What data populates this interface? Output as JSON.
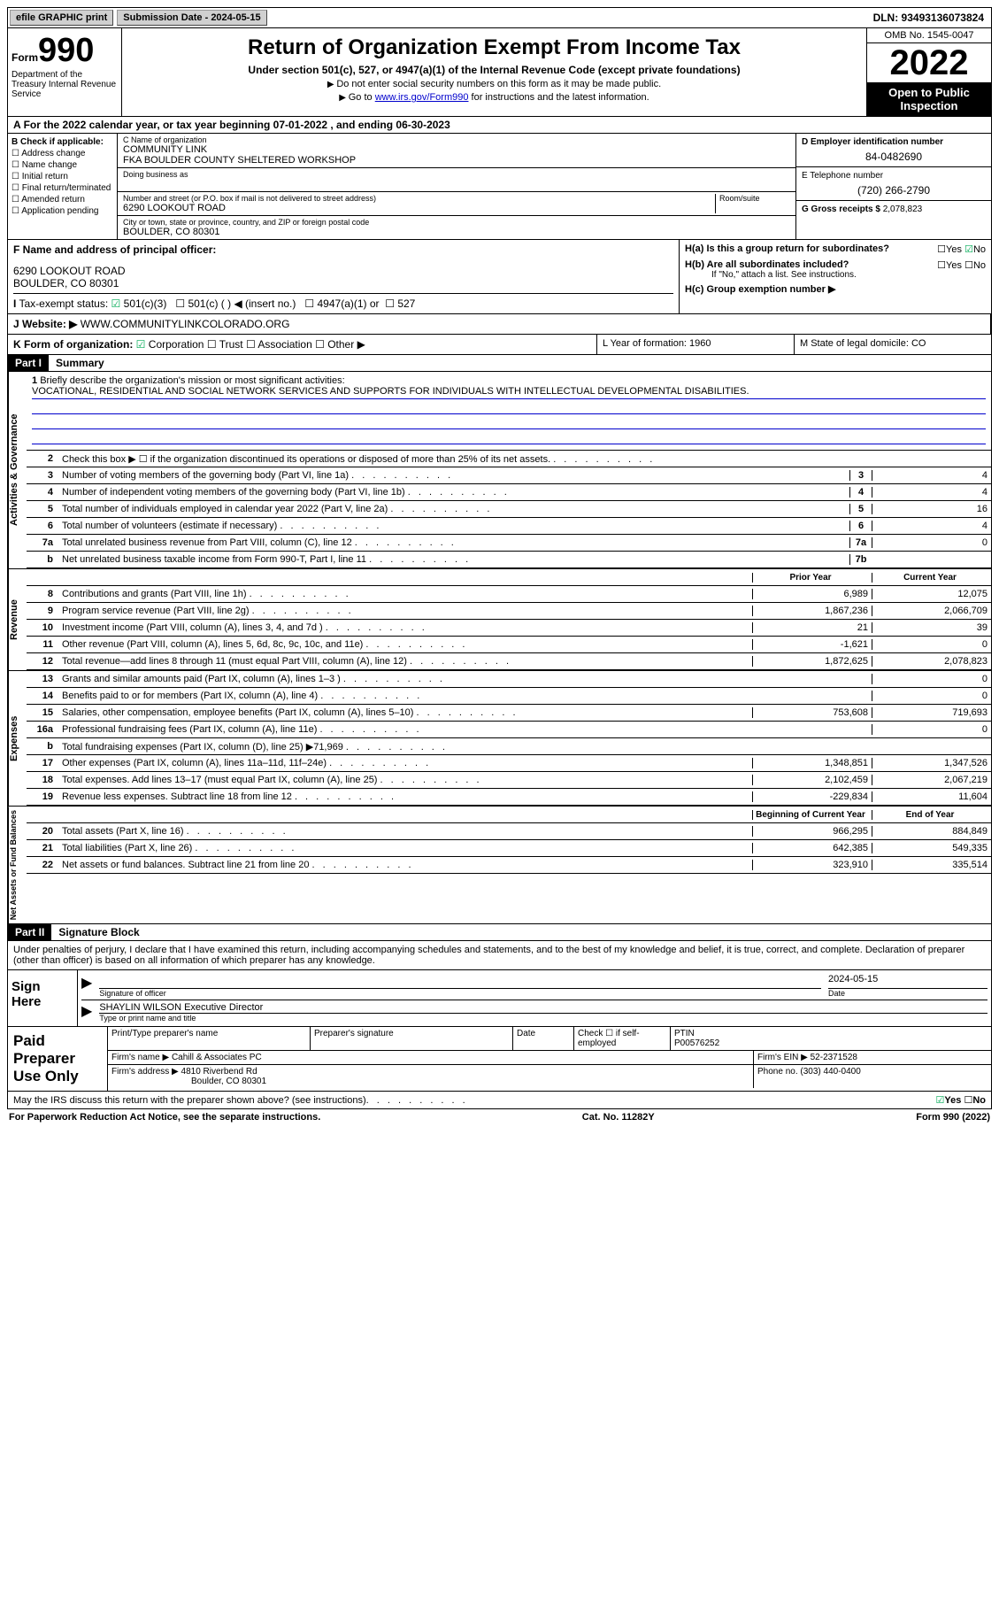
{
  "topbar": {
    "efile": "efile GRAPHIC print",
    "sub_label": "Submission Date - 2024-05-15",
    "dln": "DLN: 93493136073824"
  },
  "header": {
    "form_small": "Form",
    "form_big": "990",
    "dept": "Department of the Treasury Internal Revenue Service",
    "title": "Return of Organization Exempt From Income Tax",
    "sub": "Under section 501(c), 527, or 4947(a)(1) of the Internal Revenue Code (except private foundations)",
    "note1": "Do not enter social security numbers on this form as it may be made public.",
    "note2_pre": "Go to ",
    "note2_link": "www.irs.gov/Form990",
    "note2_post": " for instructions and the latest information.",
    "omb": "OMB No. 1545-0047",
    "year": "2022",
    "open": "Open to Public Inspection"
  },
  "row_a": "For the 2022 calendar year, or tax year beginning 07-01-2022   , and ending 06-30-2023",
  "col_b": {
    "title": "B Check if applicable:",
    "items": [
      "Address change",
      "Name change",
      "Initial return",
      "Final return/terminated",
      "Amended return",
      "Application pending"
    ]
  },
  "col_c": {
    "name_lbl": "C Name of organization",
    "name1": "COMMUNITY LINK",
    "name2": "FKA BOULDER COUNTY SHELTERED WORKSHOP",
    "dba_lbl": "Doing business as",
    "addr_lbl": "Number and street (or P.O. box if mail is not delivered to street address)",
    "room_lbl": "Room/suite",
    "addr": "6290 LOOKOUT ROAD",
    "city_lbl": "City or town, state or province, country, and ZIP or foreign postal code",
    "city": "BOULDER, CO  80301"
  },
  "col_d": {
    "ein_lbl": "D Employer identification number",
    "ein": "84-0482690",
    "tel_lbl": "E Telephone number",
    "tel": "(720) 266-2790",
    "gross_lbl": "G Gross receipts $",
    "gross": "2,078,823"
  },
  "sec_f": {
    "f_lbl": "F Name and address of principal officer:",
    "f_addr1": "6290 LOOKOUT ROAD",
    "f_addr2": "BOULDER, CO  80301",
    "i_lbl": "Tax-exempt status:",
    "i_501c3": "501(c)(3)",
    "i_501c": "501(c) (  ) ◀ (insert no.)",
    "i_4947": "4947(a)(1) or",
    "i_527": "527",
    "j_lbl": "Website: ▶",
    "j_val": "WWW.COMMUNITYLINKCOLORADO.ORG",
    "ha_lbl": "H(a)  Is this a group return for subordinates?",
    "hb_lbl": "H(b)  Are all subordinates included?",
    "hb_note": "If \"No,\" attach a list. See instructions.",
    "hc_lbl": "H(c)  Group exemption number ▶",
    "yes": "Yes",
    "no": "No"
  },
  "row_k": {
    "k_lbl": "K Form of organization:",
    "k_corp": "Corporation",
    "k_trust": "Trust",
    "k_assoc": "Association",
    "k_other": "Other ▶",
    "l": "L Year of formation: 1960",
    "m": "M State of legal domicile: CO"
  },
  "part1": {
    "hdr": "Part I",
    "title": "Summary"
  },
  "mission": {
    "lbl": "Briefly describe the organization's mission or most significant activities:",
    "txt": "VOCATIONAL, RESIDENTIAL AND SOCIAL NETWORK SERVICES AND SUPPORTS FOR INDIVIDUALS WITH INTELLECTUAL DEVELOPMENTAL DISABILITIES."
  },
  "lines_ag": [
    {
      "n": "2",
      "t": "Check this box ▶ ☐ if the organization discontinued its operations or disposed of more than 25% of its net assets."
    },
    {
      "n": "3",
      "t": "Number of voting members of the governing body (Part VI, line 1a)",
      "b": "3",
      "v": "4"
    },
    {
      "n": "4",
      "t": "Number of independent voting members of the governing body (Part VI, line 1b)",
      "b": "4",
      "v": "4"
    },
    {
      "n": "5",
      "t": "Total number of individuals employed in calendar year 2022 (Part V, line 2a)",
      "b": "5",
      "v": "16"
    },
    {
      "n": "6",
      "t": "Total number of volunteers (estimate if necessary)",
      "b": "6",
      "v": "4"
    },
    {
      "n": "7a",
      "t": "Total unrelated business revenue from Part VIII, column (C), line 12",
      "b": "7a",
      "v": "0"
    },
    {
      "n": "b",
      "t": "Net unrelated business taxable income from Form 990-T, Part I, line 11",
      "b": "7b",
      "v": ""
    }
  ],
  "col_hdrs": {
    "py": "Prior Year",
    "cy": "Current Year",
    "by": "Beginning of Current Year",
    "ey": "End of Year"
  },
  "lines_rev": [
    {
      "n": "8",
      "t": "Contributions and grants (Part VIII, line 1h)",
      "v1": "6,989",
      "v2": "12,075"
    },
    {
      "n": "9",
      "t": "Program service revenue (Part VIII, line 2g)",
      "v1": "1,867,236",
      "v2": "2,066,709"
    },
    {
      "n": "10",
      "t": "Investment income (Part VIII, column (A), lines 3, 4, and 7d )",
      "v1": "21",
      "v2": "39"
    },
    {
      "n": "11",
      "t": "Other revenue (Part VIII, column (A), lines 5, 6d, 8c, 9c, 10c, and 11e)",
      "v1": "-1,621",
      "v2": "0"
    },
    {
      "n": "12",
      "t": "Total revenue—add lines 8 through 11 (must equal Part VIII, column (A), line 12)",
      "v1": "1,872,625",
      "v2": "2,078,823"
    }
  ],
  "lines_exp": [
    {
      "n": "13",
      "t": "Grants and similar amounts paid (Part IX, column (A), lines 1–3 )",
      "v1": "",
      "v2": "0"
    },
    {
      "n": "14",
      "t": "Benefits paid to or for members (Part IX, column (A), line 4)",
      "v1": "",
      "v2": "0"
    },
    {
      "n": "15",
      "t": "Salaries, other compensation, employee benefits (Part IX, column (A), lines 5–10)",
      "v1": "753,608",
      "v2": "719,693"
    },
    {
      "n": "16a",
      "t": "Professional fundraising fees (Part IX, column (A), line 11e)",
      "v1": "",
      "v2": "0"
    },
    {
      "n": "b",
      "t": "Total fundraising expenses (Part IX, column (D), line 25) ▶71,969",
      "shaded": true
    },
    {
      "n": "17",
      "t": "Other expenses (Part IX, column (A), lines 11a–11d, 11f–24e)",
      "v1": "1,348,851",
      "v2": "1,347,526"
    },
    {
      "n": "18",
      "t": "Total expenses. Add lines 13–17 (must equal Part IX, column (A), line 25)",
      "v1": "2,102,459",
      "v2": "2,067,219"
    },
    {
      "n": "19",
      "t": "Revenue less expenses. Subtract line 18 from line 12",
      "v1": "-229,834",
      "v2": "11,604"
    }
  ],
  "lines_net": [
    {
      "n": "20",
      "t": "Total assets (Part X, line 16)",
      "v1": "966,295",
      "v2": "884,849"
    },
    {
      "n": "21",
      "t": "Total liabilities (Part X, line 26)",
      "v1": "642,385",
      "v2": "549,335"
    },
    {
      "n": "22",
      "t": "Net assets or fund balances. Subtract line 21 from line 20",
      "v1": "323,910",
      "v2": "335,514"
    }
  ],
  "vtabs": {
    "ag": "Activities & Governance",
    "rev": "Revenue",
    "exp": "Expenses",
    "net": "Net Assets or Fund Balances"
  },
  "part2": {
    "hdr": "Part II",
    "title": "Signature Block"
  },
  "sig": {
    "decl": "Under penalties of perjury, I declare that I have examined this return, including accompanying schedules and statements, and to the best of my knowledge and belief, it is true, correct, and complete. Declaration of preparer (other than officer) is based on all information of which preparer has any knowledge.",
    "sign_here": "Sign Here",
    "sig_lbl": "Signature of officer",
    "date_lbl": "Date",
    "date_val": "2024-05-15",
    "name": "SHAYLIN WILSON Executive Director",
    "name_lbl": "Type or print name and title"
  },
  "prep": {
    "title": "Paid Preparer Use Only",
    "h1": "Print/Type preparer's name",
    "h2": "Preparer's signature",
    "h3": "Date",
    "h4": "Check ☐ if self-employed",
    "h5_lbl": "PTIN",
    "h5": "P00576252",
    "firm_lbl": "Firm's name    ▶",
    "firm": "Cahill & Associates PC",
    "fein_lbl": "Firm's EIN ▶",
    "fein": "52-2371528",
    "addr_lbl": "Firm's address ▶",
    "addr1": "4810 Riverbend Rd",
    "addr2": "Boulder, CO  80301",
    "phone_lbl": "Phone no.",
    "phone": "(303) 440-0400"
  },
  "footer": {
    "q": "May the IRS discuss this return with the preparer shown above? (see instructions)",
    "yes": "Yes",
    "no": "No",
    "pra": "For Paperwork Reduction Act Notice, see the separate instructions.",
    "cat": "Cat. No. 11282Y",
    "form": "Form 990 (2022)"
  }
}
